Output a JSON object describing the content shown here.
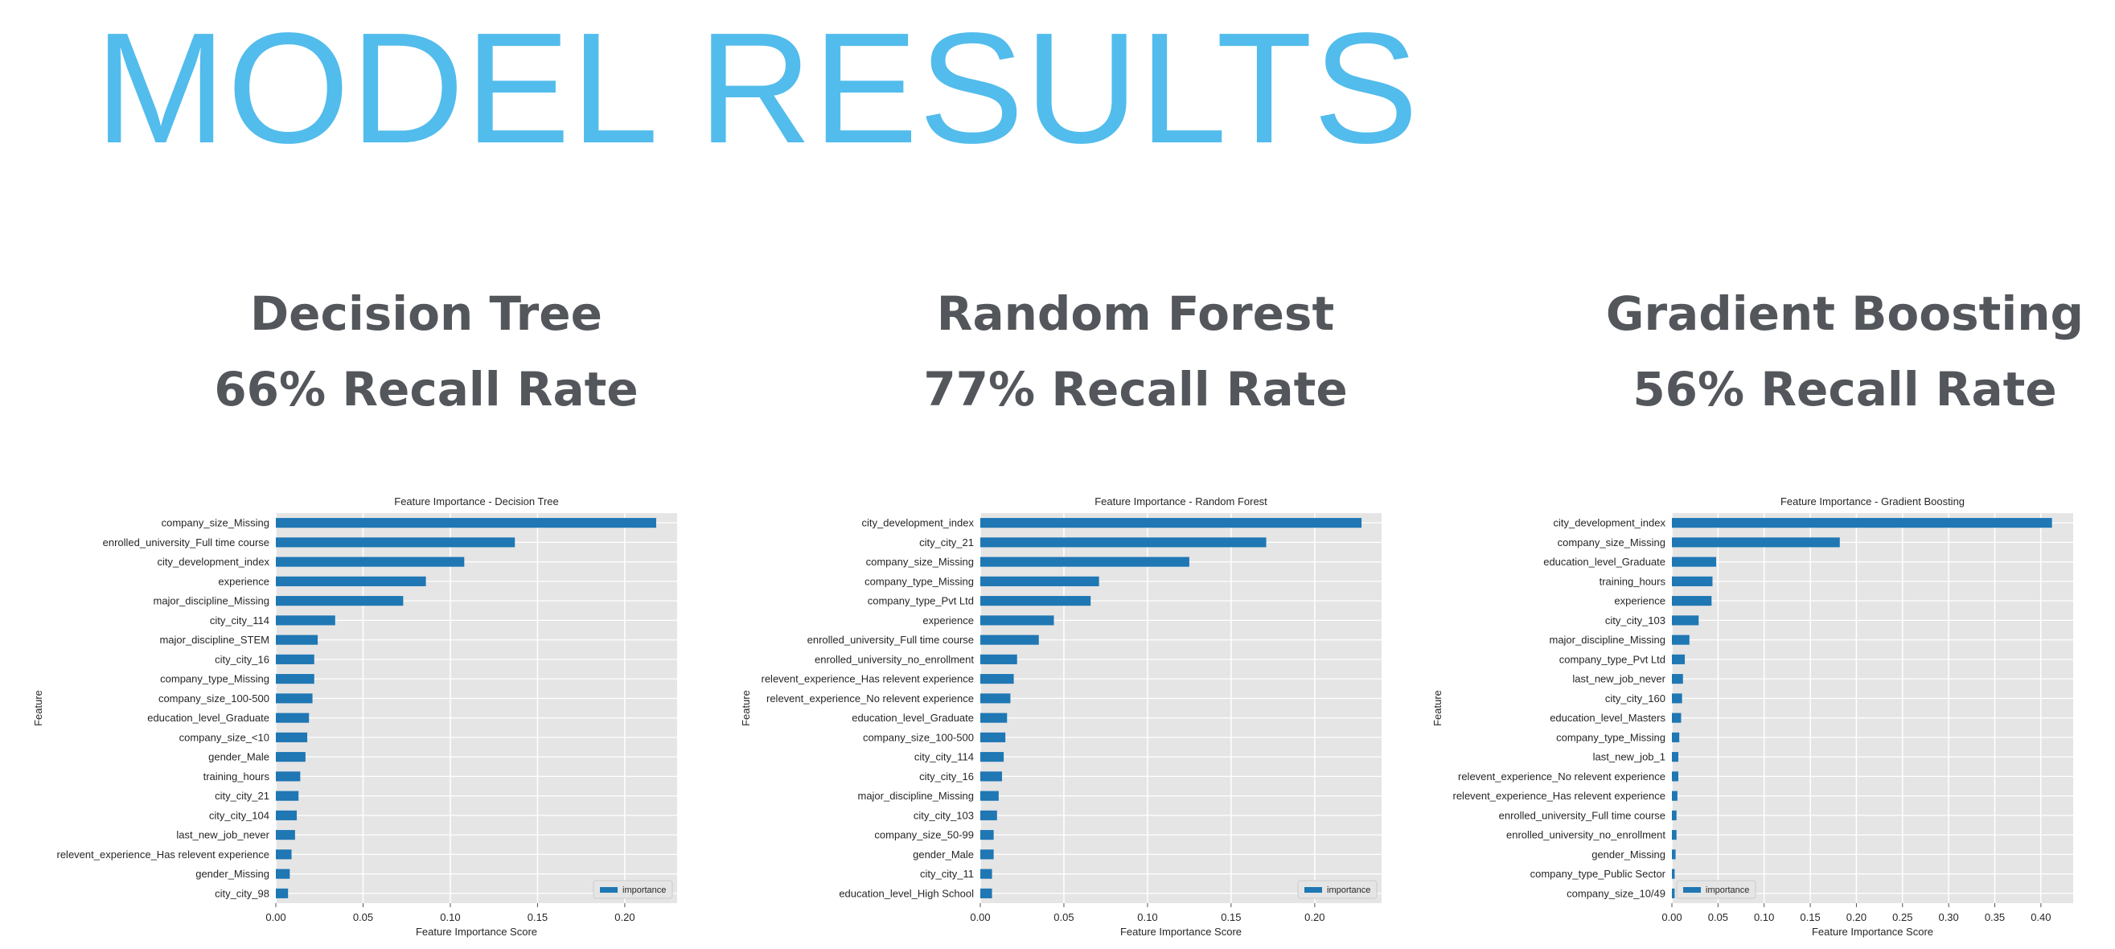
{
  "title": "MODEL RESULTS",
  "models": [
    {
      "name": "Decision Tree",
      "recall": "66% Recall Rate"
    },
    {
      "name": "Random Forest",
      "recall": "77% Recall Rate"
    },
    {
      "name": "Gradient Boosting",
      "recall": "56% Recall Rate"
    }
  ],
  "colors": {
    "title": "#52bcec",
    "heading": "#53565b",
    "bar": "#1f77b4",
    "plot_bg": "#e5e5e5",
    "grid": "#ffffff"
  },
  "chart_data": [
    {
      "type": "bar",
      "orientation": "horizontal",
      "title": "Feature Importance - Decision Tree",
      "xlabel": "Feature Importance Score",
      "ylabel": "Feature",
      "legend": "importance",
      "legend_position": "lower-right",
      "grid": true,
      "xlim": [
        0,
        0.23
      ],
      "xticks": [
        "0.00",
        "0.05",
        "0.10",
        "0.15",
        "0.20"
      ],
      "categories": [
        "company_size_Missing",
        "enrolled_university_Full time course",
        "city_development_index",
        "experience",
        "major_discipline_Missing",
        "city_city_114",
        "major_discipline_STEM",
        "city_city_16",
        "company_type_Missing",
        "company_size_100-500",
        "education_level_Graduate",
        "company_size_<10",
        "gender_Male",
        "training_hours",
        "city_city_21",
        "city_city_104",
        "last_new_job_never",
        "relevent_experience_Has relevent experience",
        "gender_Missing",
        "city_city_98"
      ],
      "values": [
        0.218,
        0.137,
        0.108,
        0.086,
        0.073,
        0.034,
        0.024,
        0.022,
        0.022,
        0.021,
        0.019,
        0.018,
        0.017,
        0.014,
        0.013,
        0.012,
        0.011,
        0.009,
        0.008,
        0.007
      ]
    },
    {
      "type": "bar",
      "orientation": "horizontal",
      "title": "Feature Importance - Random Forest",
      "xlabel": "Feature Importance Score",
      "ylabel": "Feature",
      "legend": "importance",
      "legend_position": "lower-right",
      "grid": true,
      "xlim": [
        0,
        0.24
      ],
      "xticks": [
        "0.00",
        "0.05",
        "0.10",
        "0.15",
        "0.20"
      ],
      "categories": [
        "city_development_index",
        "city_city_21",
        "company_size_Missing",
        "company_type_Missing",
        "company_type_Pvt Ltd",
        "experience",
        "enrolled_university_Full time course",
        "enrolled_university_no_enrollment",
        "relevent_experience_Has relevent experience",
        "relevent_experience_No relevent experience",
        "education_level_Graduate",
        "company_size_100-500",
        "city_city_114",
        "city_city_16",
        "major_discipline_Missing",
        "city_city_103",
        "company_size_50-99",
        "gender_Male",
        "city_city_11",
        "education_level_High School"
      ],
      "values": [
        0.228,
        0.171,
        0.125,
        0.071,
        0.066,
        0.044,
        0.035,
        0.022,
        0.02,
        0.018,
        0.016,
        0.015,
        0.014,
        0.013,
        0.011,
        0.01,
        0.008,
        0.008,
        0.007,
        0.007
      ]
    },
    {
      "type": "bar",
      "orientation": "horizontal",
      "title": "Feature Importance - Gradient Boosting",
      "xlabel": "Feature Importance Score",
      "ylabel": "Feature",
      "legend": "importance",
      "legend_position": "lower-left",
      "grid": true,
      "xlim": [
        0,
        0.435
      ],
      "xticks": [
        "0.00",
        "0.05",
        "0.10",
        "0.15",
        "0.20",
        "0.25",
        "0.30",
        "0.35",
        "0.40"
      ],
      "categories": [
        "city_development_index",
        "company_size_Missing",
        "education_level_Graduate",
        "training_hours",
        "experience",
        "city_city_103",
        "major_discipline_Missing",
        "company_type_Pvt Ltd",
        "last_new_job_never",
        "city_city_160",
        "education_level_Masters",
        "company_type_Missing",
        "last_new_job_1",
        "relevent_experience_No relevent experience",
        "relevent_experience_Has relevent experience",
        "enrolled_university_Full time course",
        "enrolled_university_no_enrollment",
        "gender_Missing",
        "company_type_Public Sector",
        "company_size_10/49"
      ],
      "values": [
        0.412,
        0.182,
        0.048,
        0.044,
        0.043,
        0.029,
        0.019,
        0.014,
        0.012,
        0.011,
        0.01,
        0.008,
        0.007,
        0.007,
        0.006,
        0.005,
        0.005,
        0.004,
        0.003,
        0.003
      ]
    }
  ]
}
